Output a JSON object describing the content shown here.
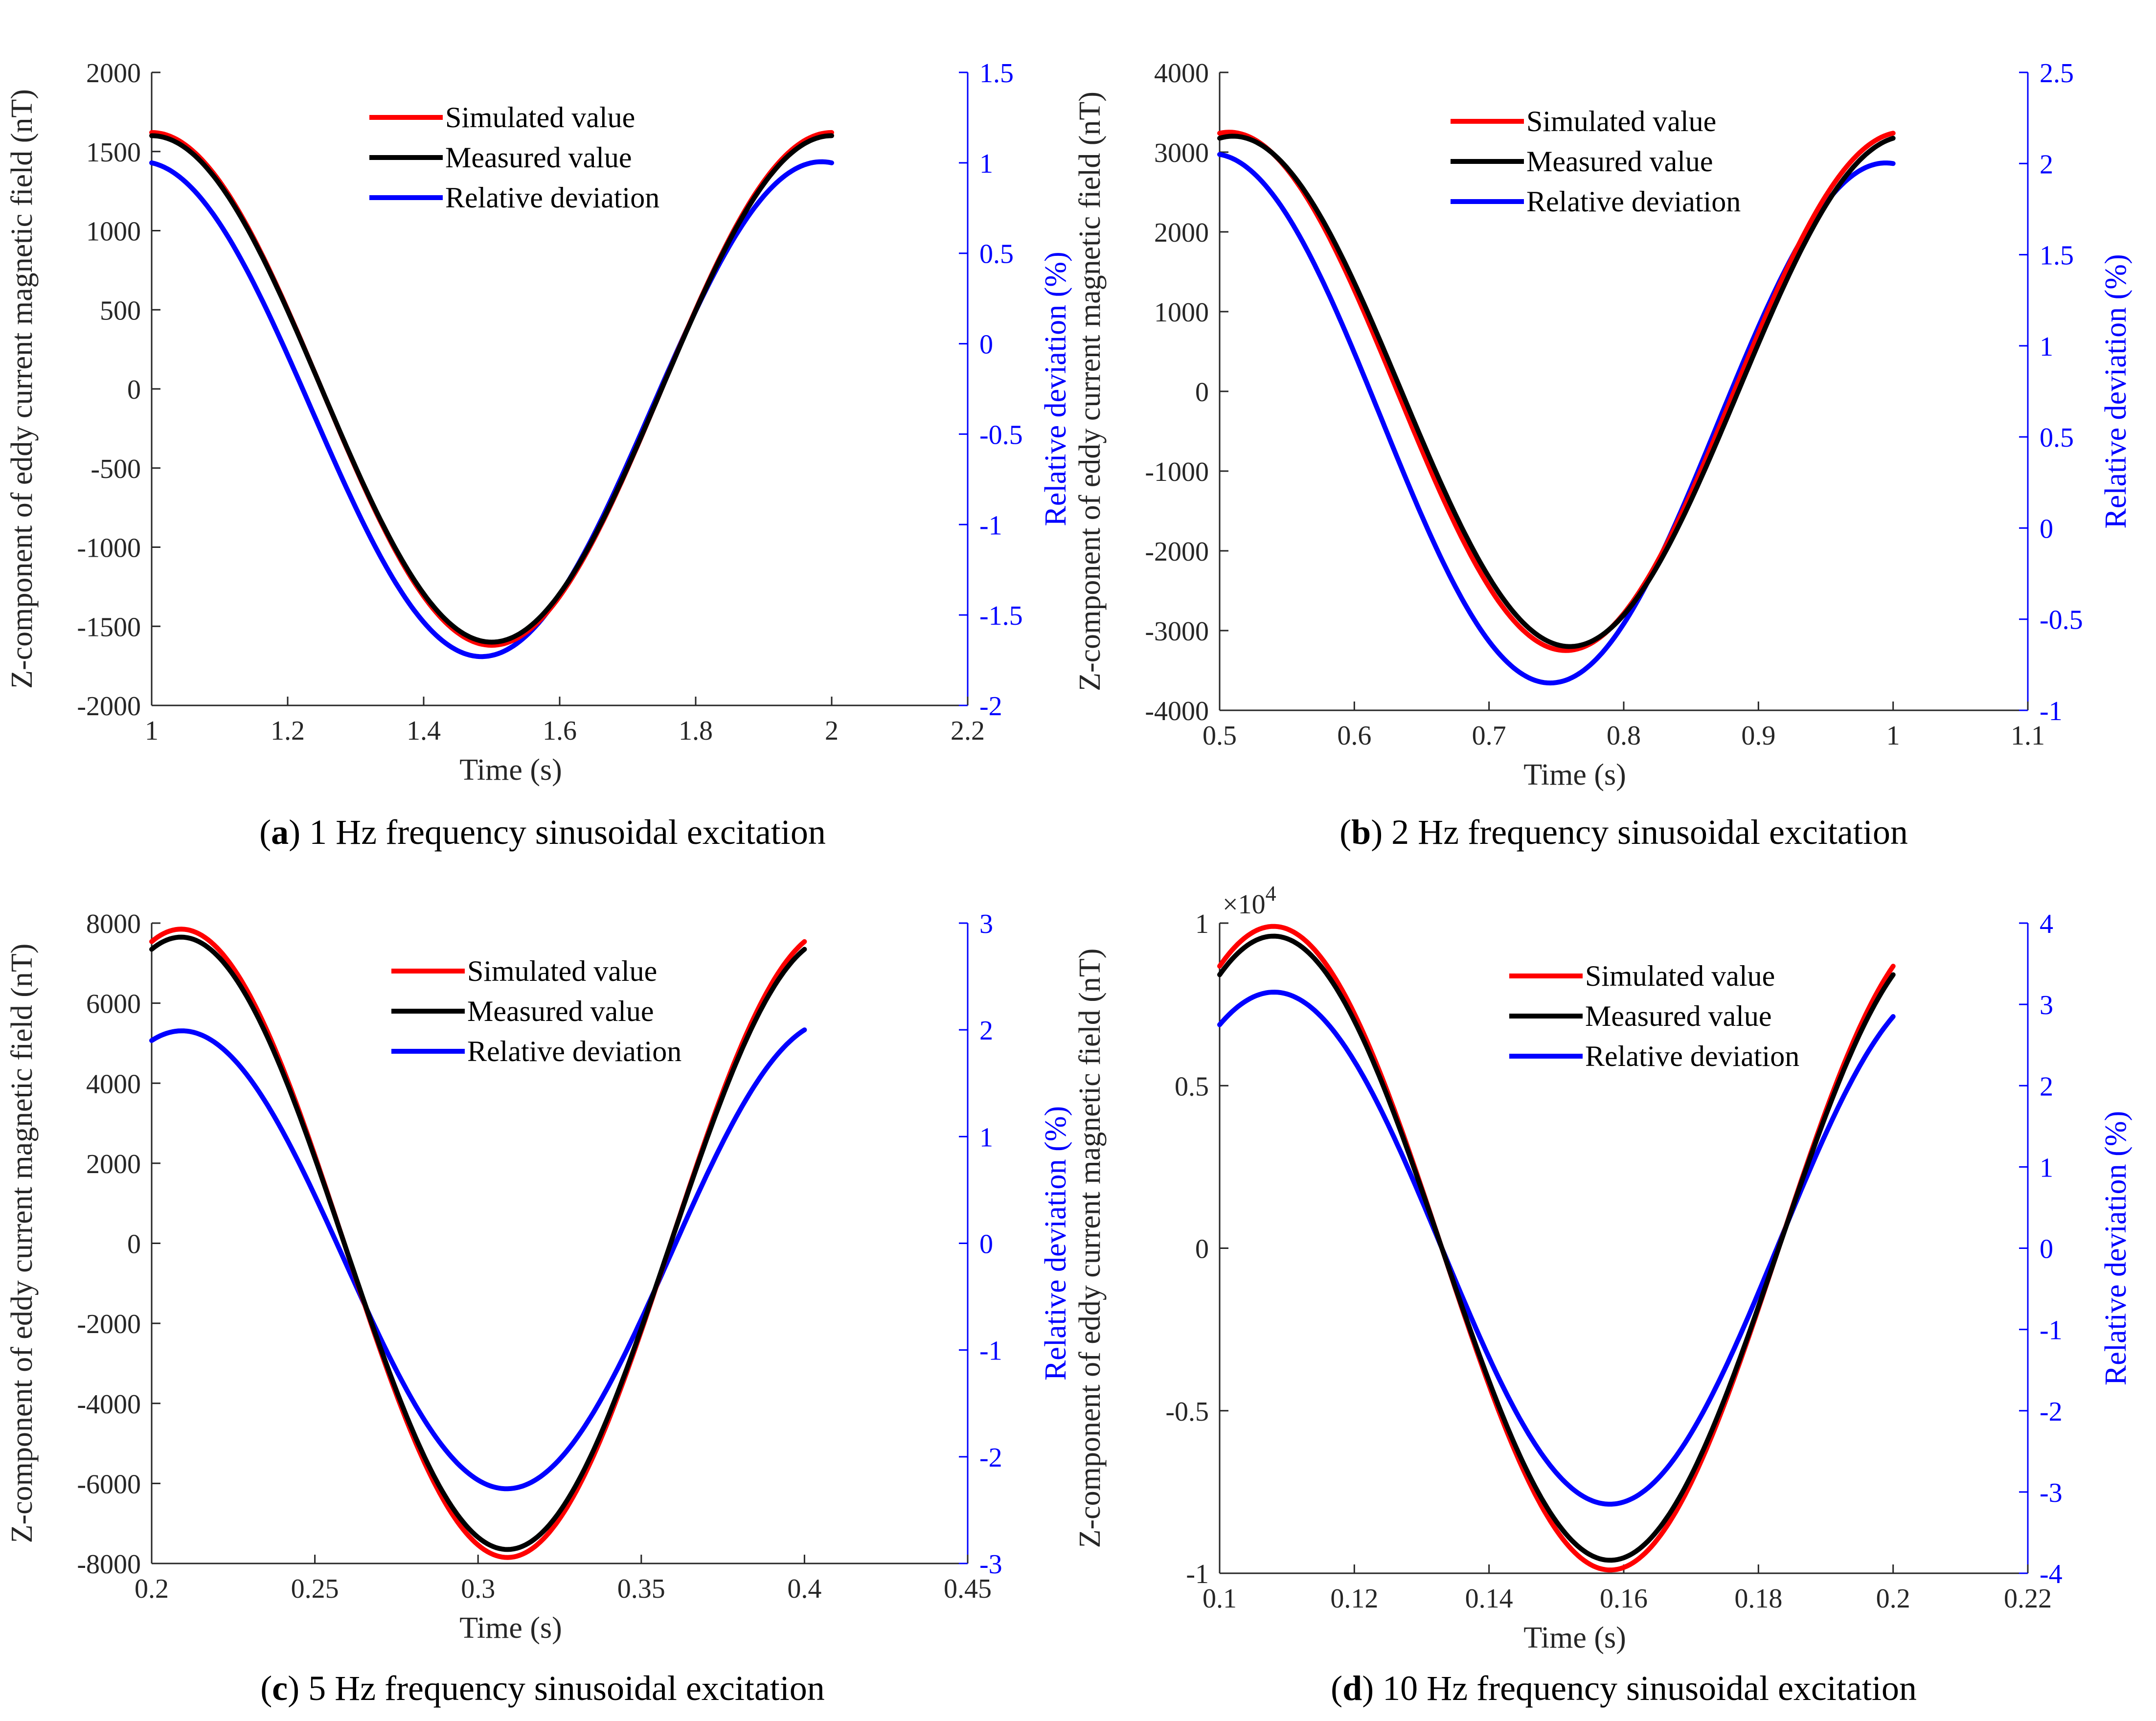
{
  "colors": {
    "simulated": "#ff0000",
    "measured": "#000000",
    "deviation": "#0000ff",
    "axis": "#262626"
  },
  "chart_data": [
    {
      "type": "line",
      "caption_letter": "a",
      "caption_text": " 1 Hz frequency sinusoidal excitation",
      "xlabel": "Time (s)",
      "ylabel": "Z-component of eddy current magnetic field (nT)",
      "y2label": "Relative deviation (%)",
      "xlim": [
        1,
        2.2
      ],
      "ylim": [
        -2000,
        2000
      ],
      "y2lim": [
        -2,
        1.5
      ],
      "xticks": [
        "1",
        "1.2",
        "1.4",
        "1.6",
        "1.8",
        "2",
        "2.2"
      ],
      "yticks": [
        "-2000",
        "-1500",
        "-1000",
        "-500",
        "0",
        "500",
        "1000",
        "1500",
        "2000"
      ],
      "y2ticks": [
        "-2",
        "-1.5",
        "-1",
        "-0.5",
        "0",
        "0.5",
        "1",
        "1.5"
      ],
      "legend": [
        "Simulated value",
        "Measured value",
        "Relative deviation"
      ],
      "legend_position": "top-center",
      "series": [
        {
          "name": "Simulated value",
          "axis": "left",
          "t0": 1,
          "t1": 2,
          "freq": 1,
          "amp": 1620,
          "dphase": 0,
          "min_t": 1.5
        },
        {
          "name": "Measured value",
          "axis": "left",
          "t0": 1,
          "t1": 2,
          "freq": 1,
          "amp": 1600,
          "dphase": 0,
          "min_t": 1.5
        },
        {
          "name": "Relative deviation",
          "axis": "right",
          "t0": 1,
          "t1": 2,
          "freq": 1,
          "amp": 1.75,
          "dphase": 0.03,
          "min_t": 1.485,
          "start_value": 1.0,
          "end_value": 1.0,
          "min_value": -1.73
        }
      ]
    },
    {
      "type": "line",
      "caption_letter": "b",
      "caption_text": " 2 Hz frequency sinusoidal excitation",
      "xlabel": "Time (s)",
      "ylabel": "Z-component of eddy current magnetic field (nT)",
      "y2label": "Relative deviation (%)",
      "xlim": [
        0.5,
        1.1
      ],
      "ylim": [
        -4000,
        4000
      ],
      "y2lim": [
        -1,
        2.5
      ],
      "xticks": [
        "0.5",
        "0.6",
        "0.7",
        "0.8",
        "0.9",
        "1",
        "1.1"
      ],
      "yticks": [
        "-4000",
        "-3000",
        "-2000",
        "-1000",
        "0",
        "1000",
        "2000",
        "3000",
        "4000"
      ],
      "y2ticks": [
        "-1",
        "-0.5",
        "0",
        "0.5",
        "1",
        "1.5",
        "2",
        "2.5"
      ],
      "legend": [
        "Simulated value",
        "Measured value",
        "Relative deviation"
      ],
      "legend_position": "top-center",
      "series": [
        {
          "name": "Simulated value",
          "axis": "left",
          "t0": 0.5,
          "t1": 1,
          "freq": 2,
          "amp": 3250,
          "dphase": 0,
          "min_t": 0.757
        },
        {
          "name": "Measured value",
          "axis": "left",
          "t0": 0.5,
          "t1": 1,
          "freq": 2,
          "amp": 3200,
          "dphase": 0,
          "min_t": 0.76
        },
        {
          "name": "Relative deviation",
          "axis": "right",
          "t0": 0.5,
          "t1": 1,
          "freq": 2,
          "amp": 1.43,
          "dphase": 0,
          "min_t": 0.745,
          "start_value": 2.05,
          "end_value": 2.0,
          "min_value": -0.85
        }
      ]
    },
    {
      "type": "line",
      "caption_letter": "c",
      "caption_text": " 5 Hz frequency sinusoidal excitation",
      "xlabel": "Time (s)",
      "ylabel": "Z-component of eddy current magnetic field (nT)",
      "y2label": "Relative deviation (%)",
      "xlim": [
        0.2,
        0.45
      ],
      "ylim": [
        -8000,
        8000
      ],
      "y2lim": [
        -3,
        3
      ],
      "xticks": [
        "0.2",
        "0.25",
        "0.3",
        "0.35",
        "0.4",
        "0.45"
      ],
      "yticks": [
        "-8000",
        "-6000",
        "-4000",
        "-2000",
        "0",
        "2000",
        "4000",
        "6000",
        "8000"
      ],
      "y2ticks": [
        "-3",
        "-2",
        "-1",
        "0",
        "1",
        "2",
        "3"
      ],
      "legend": [
        "Simulated value",
        "Measured value",
        "Relative deviation"
      ],
      "legend_position": "top-center",
      "series": [
        {
          "name": "Simulated value",
          "axis": "left",
          "t0": 0.2,
          "t1": 0.4,
          "freq": 5,
          "amp": 7850,
          "dphase": 0,
          "min_t": 0.309
        },
        {
          "name": "Measured value",
          "axis": "left",
          "t0": 0.2,
          "t1": 0.4,
          "freq": 5,
          "amp": 7650,
          "dphase": 0,
          "min_t": 0.309
        },
        {
          "name": "Relative deviation",
          "axis": "right",
          "t0": 0.2,
          "t1": 0.4,
          "freq": 5,
          "amp": 2.2,
          "dphase": 0,
          "min_t": 0.309,
          "start_value": 1.9,
          "end_value": 2.0,
          "min_value": -2.3
        }
      ]
    },
    {
      "type": "line",
      "caption_letter": "d",
      "caption_text": " 10 Hz frequency sinusoidal excitation",
      "xlabel": "Time (s)",
      "ylabel": "Z-component of eddy current magnetic field (nT)",
      "y2label": "Relative deviation (%)",
      "exponent_label": "×10",
      "exponent_power": "4",
      "xlim": [
        0.1,
        0.22
      ],
      "ylim": [
        -1,
        1
      ],
      "y2lim": [
        -4,
        4
      ],
      "xticks": [
        "0.1",
        "0.12",
        "0.14",
        "0.16",
        "0.18",
        "0.2",
        "0.22"
      ],
      "yticks": [
        "-1",
        "-0.5",
        "0",
        "0.5",
        "1"
      ],
      "y2ticks": [
        "-4",
        "-3",
        "-2",
        "-1",
        "0",
        "1",
        "2",
        "3",
        "4"
      ],
      "legend": [
        "Simulated value",
        "Measured value",
        "Relative deviation"
      ],
      "legend_position": "top-right",
      "series": [
        {
          "name": "Simulated value",
          "axis": "left",
          "t0": 0.1,
          "t1": 0.2,
          "freq": 10,
          "amp": 0.99,
          "dphase": 0,
          "min_t": 0.158
        },
        {
          "name": "Measured value",
          "axis": "left",
          "t0": 0.1,
          "t1": 0.2,
          "freq": 10,
          "amp": 0.96,
          "dphase": 0,
          "min_t": 0.158
        },
        {
          "name": "Relative deviation",
          "axis": "right",
          "t0": 0.1,
          "t1": 0.2,
          "freq": 10,
          "amp": 3.1,
          "dphase": 0,
          "min_t": 0.158,
          "start_value": 2.75,
          "end_value": 2.85,
          "min_value": -3.15
        }
      ]
    }
  ]
}
